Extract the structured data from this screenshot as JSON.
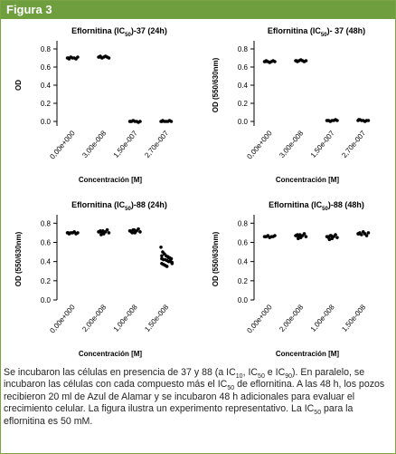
{
  "header": {
    "title": "Figura 3"
  },
  "chart_data": [
    {
      "type": "dot",
      "title": [
        "Eflornitina (IC",
        "50",
        ")-37 (24h)"
      ],
      "ylabel": "OD",
      "xlabel": "Concentración [M]",
      "categories": [
        "0,00e+000",
        "3,00e-008",
        "1,50e-007",
        "2,70e-007"
      ],
      "values": [
        [
          0.7,
          0.69,
          0.71,
          0.7,
          0.7,
          0.69,
          0.71,
          0.7
        ],
        [
          0.71,
          0.72,
          0.7,
          0.71,
          0.72,
          0.71,
          0.7,
          0.71
        ],
        [
          0.0,
          0.0,
          0.01,
          0.0,
          0.0,
          -0.01,
          0.0,
          0.0
        ],
        [
          0.0,
          0.01,
          0.0,
          0.0,
          0.0,
          0.01,
          0.0,
          0.0
        ]
      ],
      "color": "#000000",
      "ylim": [
        -0.05,
        0.85
      ],
      "yticks": [
        {
          "value": 0,
          "label": "0.0"
        },
        {
          "value": 0.2,
          "label": "0.2"
        },
        {
          "value": 0.4,
          "label": "0.4"
        },
        {
          "value": 0.6,
          "label": "0.6"
        },
        {
          "value": 0.8,
          "label": "0.8"
        }
      ]
    },
    {
      "type": "dot",
      "title": [
        "Eflornitina (IC",
        "50",
        ")- 37 (48h)"
      ],
      "ylabel": "OD (550/630nm)",
      "xlabel": "Concentración [M]",
      "categories": [
        "0,00e+000",
        "3,00e-008",
        "1,50e-007",
        "2,70e-007"
      ],
      "values": [
        [
          0.66,
          0.67,
          0.66,
          0.65,
          0.66,
          0.67,
          0.66,
          0.66
        ],
        [
          0.67,
          0.66,
          0.67,
          0.68,
          0.67,
          0.66,
          0.67,
          0.67
        ],
        [
          0.01,
          0.01,
          0.0,
          0.01,
          0.01,
          0.02,
          0.01,
          0.01
        ],
        [
          0.01,
          0.02,
          0.01,
          0.01,
          0.0,
          0.01,
          0.01,
          0.02
        ]
      ],
      "color": "#000000",
      "ylim": [
        -0.05,
        0.85
      ],
      "yticks": [
        {
          "value": 0,
          "label": "0.0"
        },
        {
          "value": 0.2,
          "label": "0.2"
        },
        {
          "value": 0.4,
          "label": "0.4"
        },
        {
          "value": 0.6,
          "label": "0.6"
        },
        {
          "value": 0.8,
          "label": "0.8"
        }
      ]
    },
    {
      "type": "dot",
      "title": [
        "Eflornitina (IC",
        "50",
        ")-88 (24h)"
      ],
      "ylabel": "OD (550/630nm)",
      "xlabel": "Concentración [M]",
      "categories": [
        "0,00e+000",
        "2,00e-008",
        "1,00e-008",
        "1,50e-008"
      ],
      "values": [
        [
          0.7,
          0.69,
          0.7,
          0.7,
          0.71,
          0.69,
          0.7,
          0.7
        ],
        [
          0.71,
          0.72,
          0.7,
          0.69,
          0.71,
          0.73,
          0.7,
          0.71,
          0.68,
          0.72
        ],
        [
          0.72,
          0.71,
          0.73,
          0.7,
          0.72,
          0.74,
          0.71,
          0.72,
          0.7,
          0.73
        ],
        [
          0.55,
          0.5,
          0.48,
          0.46,
          0.45,
          0.44,
          0.43,
          0.43,
          0.42,
          0.42,
          0.41,
          0.4,
          0.4,
          0.39,
          0.38,
          0.37,
          0.36,
          0.35,
          0.44,
          0.41,
          0.38,
          0.46
        ]
      ],
      "color": "#000000",
      "ylim": [
        0,
        0.85
      ],
      "yticks": [
        {
          "value": 0,
          "label": "0.0"
        },
        {
          "value": 0.2,
          "label": "0.2"
        },
        {
          "value": 0.4,
          "label": "0.4"
        },
        {
          "value": 0.6,
          "label": "0.6"
        },
        {
          "value": 0.8,
          "label": "0.8"
        }
      ]
    },
    {
      "type": "dot",
      "title": [
        "Eflornitina (IC",
        "50",
        ")-88 (48h)"
      ],
      "ylabel": "OD (550/630nm)",
      "xlabel": "Concentración [M]",
      "categories": [
        "0,00e+000",
        "2,00e-008",
        "1,00e-008",
        "1,50e-008"
      ],
      "values": [
        [
          0.66,
          0.66,
          0.67,
          0.65,
          0.66,
          0.66,
          0.67,
          0.66
        ],
        [
          0.67,
          0.68,
          0.66,
          0.65,
          0.67,
          0.69,
          0.66,
          0.67,
          0.64,
          0.68
        ],
        [
          0.66,
          0.65,
          0.67,
          0.64,
          0.66,
          0.68,
          0.65,
          0.66,
          0.63,
          0.67
        ],
        [
          0.69,
          0.7,
          0.68,
          0.71,
          0.69,
          0.67,
          0.7,
          0.69
        ]
      ],
      "color": "#000000",
      "ylim": [
        0,
        0.85
      ],
      "yticks": [
        {
          "value": 0,
          "label": "0.0"
        },
        {
          "value": 0.2,
          "label": "0.2"
        },
        {
          "value": 0.4,
          "label": "0.4"
        },
        {
          "value": 0.6,
          "label": "0.6"
        },
        {
          "value": 0.8,
          "label": "0.8"
        }
      ]
    }
  ],
  "caption": [
    {
      "text": "Se incubaron las células en presencia de 37 y 88 (a IC"
    },
    {
      "text": "10",
      "sub": true
    },
    {
      "text": ", IC"
    },
    {
      "text": "50",
      "sub": true
    },
    {
      "text": " e IC"
    },
    {
      "text": "90",
      "sub": true
    },
    {
      "text": "). En paralelo, se incubaron las células con cada compuesto más el IC"
    },
    {
      "text": "50",
      "sub": true
    },
    {
      "text": " de eflornitina. A las 48 h, los pozos recibieron 20 ml de Azul de Alamar y se incubaron 48 h adicionales para evaluar el crecimiento celular. La figura ilustra un experimento representativo. La IC"
    },
    {
      "text": "50",
      "sub": true
    },
    {
      "text": " para la eflornitina es 50 mM."
    }
  ]
}
